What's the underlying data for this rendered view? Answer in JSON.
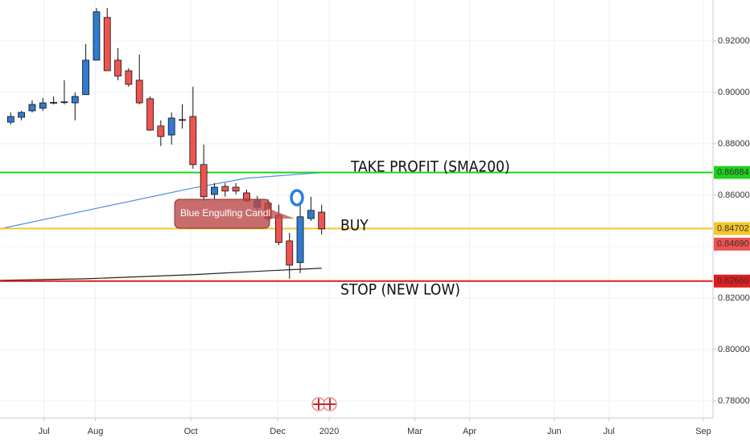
{
  "chart_data": {
    "type": "candlestick",
    "xlim": [
      -1,
      65.5
    ],
    "xticks": [
      {
        "value": 3.1,
        "label": "Jul"
      },
      {
        "value": 7.9,
        "label": "Aug"
      },
      {
        "value": 16.8,
        "label": "Oct"
      },
      {
        "value": 24.9,
        "label": "Dec"
      },
      {
        "value": 29.7,
        "label": "2020"
      },
      {
        "value": 37.7,
        "label": "Mar"
      },
      {
        "value": 42.8,
        "label": "Apr"
      },
      {
        "value": 50.7,
        "label": "Jun"
      },
      {
        "value": 55.8,
        "label": "Jul"
      },
      {
        "value": 64.6,
        "label": "Sep"
      }
    ],
    "ylim": [
      0.7734,
      0.9359
    ],
    "yticks": [
      {
        "value": 0.78,
        "label": "0.78000"
      },
      {
        "value": 0.8,
        "label": "0.80000"
      },
      {
        "value": 0.82,
        "label": "0.82000"
      },
      {
        "value": 0.84,
        "label": "0.84000"
      },
      {
        "value": 0.86,
        "label": "0.86000"
      },
      {
        "value": 0.88,
        "label": "0.88000"
      },
      {
        "value": 0.9,
        "label": "0.90000"
      },
      {
        "value": 0.92,
        "label": "0.92000"
      }
    ],
    "grid": true,
    "up_color": "#2f7bd0",
    "down_color": "#ef5350",
    "candles": {
      "x": [
        0,
        1,
        2,
        3,
        4,
        5,
        6,
        7,
        8,
        9,
        10,
        11,
        12,
        13,
        14,
        15,
        16,
        17,
        18,
        19,
        20,
        21,
        22,
        23,
        24,
        25,
        26,
        27,
        28,
        29
      ],
      "open": [
        0.8884,
        0.8903,
        0.8928,
        0.8938,
        0.8959,
        0.8961,
        0.8959,
        0.8991,
        0.9125,
        0.9291,
        0.9125,
        0.9084,
        0.9047,
        0.8975,
        0.8869,
        0.8834,
        0.8894,
        0.8906,
        0.8719,
        0.8603,
        0.8634,
        0.8631,
        0.8609,
        0.8553,
        0.8569,
        0.8522,
        0.8422,
        0.8338,
        0.8509,
        0.8534
      ],
      "high": [
        0.8922,
        0.8928,
        0.8969,
        0.8978,
        0.8984,
        0.9047,
        0.9,
        0.9188,
        0.9328,
        0.9328,
        0.9172,
        0.9094,
        0.9147,
        0.8984,
        0.8891,
        0.8922,
        0.8953,
        0.9022,
        0.8797,
        0.8647,
        0.8647,
        0.8647,
        0.8622,
        0.8597,
        0.8584,
        0.8563,
        0.8453,
        0.8563,
        0.8594,
        0.8563
      ],
      "low": [
        0.8875,
        0.8891,
        0.8922,
        0.8928,
        0.8953,
        0.8953,
        0.8891,
        0.8991,
        0.9125,
        0.9084,
        0.9047,
        0.9022,
        0.8953,
        0.885,
        0.8791,
        0.8797,
        0.8859,
        0.8703,
        0.8578,
        0.8584,
        0.8594,
        0.8603,
        0.8572,
        0.8541,
        0.85,
        0.8406,
        0.8275,
        0.8297,
        0.85,
        0.8447
      ],
      "close": [
        0.8906,
        0.8922,
        0.8953,
        0.8959,
        0.8961,
        0.8963,
        0.8984,
        0.9125,
        0.9313,
        0.9084,
        0.9063,
        0.9031,
        0.8959,
        0.8853,
        0.8828,
        0.89,
        0.8891,
        0.8719,
        0.8594,
        0.8631,
        0.8616,
        0.8616,
        0.8578,
        0.8584,
        0.8509,
        0.8416,
        0.8328,
        0.8516,
        0.8541,
        0.8469
      ]
    },
    "overlays": [
      {
        "color": "#4a8fdc",
        "x": [
          -1,
          7,
          17,
          22,
          29
        ],
        "values": [
          0.8469,
          0.854,
          0.8628,
          0.8666,
          0.8688
        ]
      },
      {
        "color": "#222222",
        "x": [
          -1,
          7,
          17,
          24,
          29
        ],
        "values": [
          0.8269,
          0.8275,
          0.8291,
          0.8306,
          0.8316
        ]
      }
    ],
    "levels": [
      {
        "value": 0.86884,
        "label": "0.86884",
        "color": "#1fd11f",
        "text": "TAKE PROFIT (SMA200)"
      },
      {
        "value": 0.84702,
        "label": "0.84702",
        "color": "#f5c52c",
        "text": "BUY"
      },
      {
        "value": 0.8266,
        "label": "0.82660",
        "color": "#e01e1e",
        "text": "STOP (NEW LOW)"
      }
    ],
    "last_price": {
      "value": 0.8469,
      "label": "0.84690",
      "color": "#ef5350"
    },
    "annotation": "Blue Engulfing Candl"
  }
}
